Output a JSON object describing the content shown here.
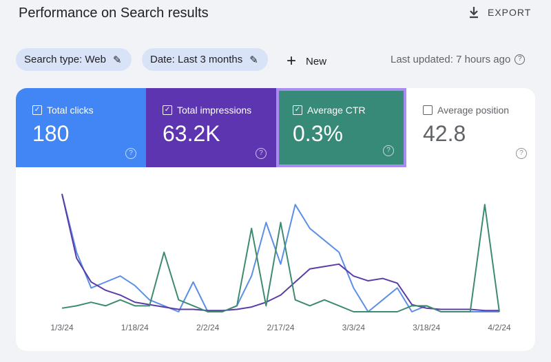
{
  "header": {
    "title": "Performance on Search results",
    "export": "EXPORT"
  },
  "filters": {
    "chips": [
      "Search type: Web",
      "Date: Last 3 months"
    ],
    "new": "New",
    "last_updated": "Last updated: 7 hours ago"
  },
  "metrics": [
    {
      "label": "Total clicks",
      "value": "180",
      "checked": true,
      "color": "#4285f4",
      "highlighted": false
    },
    {
      "label": "Total impressions",
      "value": "63.2K",
      "checked": true,
      "color": "#5e35b1",
      "highlighted": false
    },
    {
      "label": "Average CTR",
      "value": "0.3%",
      "checked": true,
      "color": "#378a78",
      "highlighted": true
    },
    {
      "label": "Average position",
      "value": "42.8",
      "checked": false,
      "color": "#ffffff",
      "highlighted": false
    }
  ],
  "chart_data": {
    "type": "line",
    "categories": [
      "1/3/24",
      null,
      null,
      null,
      null,
      "1/18/24",
      null,
      null,
      null,
      null,
      "2/2/24",
      null,
      null,
      null,
      null,
      "2/17/24",
      null,
      null,
      null,
      null,
      "3/3/24",
      null,
      null,
      null,
      null,
      "3/18/24",
      null,
      null,
      null,
      null,
      "4/2/24"
    ],
    "ylim": [
      0,
      100
    ],
    "series": [
      {
        "color": "#5b8ee6",
        "values": [
          99,
          50,
          20,
          25,
          30,
          22,
          10,
          5,
          0,
          25,
          0,
          0,
          5,
          30,
          75,
          40,
          90,
          70,
          60,
          50,
          20,
          0,
          10,
          20,
          0,
          5,
          0,
          0,
          0,
          0,
          0
        ]
      },
      {
        "color": "#5a3ca6",
        "values": [
          99,
          45,
          25,
          18,
          14,
          8,
          6,
          4,
          2,
          2,
          1,
          1,
          2,
          4,
          8,
          14,
          25,
          36,
          38,
          40,
          30,
          26,
          28,
          24,
          6,
          3,
          2,
          2,
          2,
          1,
          1
        ]
      },
      {
        "color": "#3d8a6e",
        "values": [
          3,
          5,
          8,
          5,
          10,
          5,
          5,
          50,
          10,
          5,
          0,
          0,
          5,
          70,
          5,
          75,
          10,
          5,
          10,
          5,
          0,
          0,
          0,
          0,
          5,
          5,
          0,
          0,
          0,
          90,
          0
        ]
      }
    ]
  }
}
